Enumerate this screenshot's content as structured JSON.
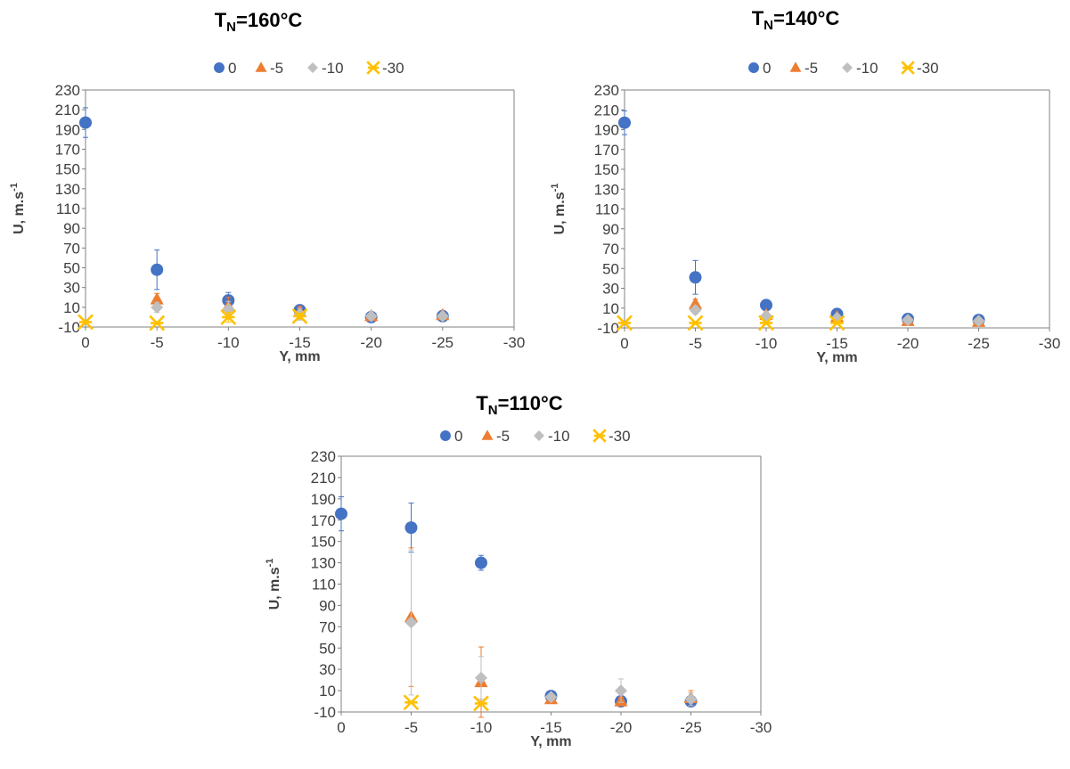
{
  "colors": {
    "s0": "#4472C4",
    "s5": "#ED7D31",
    "s10": "#BFBFBF",
    "s30": "#FFC000",
    "axis": "#808080",
    "text": "#404040"
  },
  "chart_data": [
    {
      "type": "scatter",
      "title_main": "T",
      "title_sub": "N",
      "title_rest": "=160°C",
      "xlabel": "Y, mm",
      "ylabel_main": "U, m.s",
      "ylabel_sup": "-1",
      "xlim": [
        0,
        -30
      ],
      "ylim": [
        -10,
        230
      ],
      "xticks": [
        0,
        -5,
        -10,
        -15,
        -20,
        -25,
        -30
      ],
      "yticks": [
        -10,
        10,
        30,
        50,
        70,
        90,
        110,
        130,
        150,
        170,
        190,
        210,
        230
      ],
      "legend_position": "top-center",
      "series": [
        {
          "name": "0",
          "marker": "circle",
          "x": [
            0,
            -5,
            -10,
            -15,
            -20,
            -25
          ],
          "y": [
            197,
            48,
            17,
            7,
            0,
            1
          ],
          "err": [
            15,
            20,
            8,
            4,
            2,
            2
          ]
        },
        {
          "name": "-5",
          "marker": "triangle",
          "x": [
            -5,
            -10,
            -15,
            -20,
            -25
          ],
          "y": [
            18,
            11,
            5,
            1,
            2
          ],
          "err": [
            6,
            9,
            6,
            3,
            3
          ]
        },
        {
          "name": "-10",
          "marker": "diamond",
          "x": [
            -5,
            -10,
            -15,
            -20,
            -25
          ],
          "y": [
            10,
            8,
            3,
            1,
            1
          ],
          "err": [
            5,
            8,
            6,
            2,
            2
          ]
        },
        {
          "name": "-30",
          "marker": "star",
          "x": [
            0,
            -5,
            -10,
            -15
          ],
          "y": [
            -5,
            -6,
            0,
            1
          ],
          "err": [
            1,
            1,
            5,
            3
          ]
        }
      ]
    },
    {
      "type": "scatter",
      "title_main": "T",
      "title_sub": "N",
      "title_rest": "=140°C",
      "xlabel": "Y, mm",
      "ylabel_main": "U, m.s",
      "ylabel_sup": "-1",
      "xlim": [
        0,
        -30
      ],
      "ylim": [
        -10,
        230
      ],
      "xticks": [
        0,
        -5,
        -10,
        -15,
        -20,
        -25,
        -30
      ],
      "yticks": [
        -10,
        10,
        30,
        50,
        70,
        90,
        110,
        130,
        150,
        170,
        190,
        210,
        230
      ],
      "legend_position": "top-center",
      "series": [
        {
          "name": "0",
          "marker": "circle",
          "x": [
            0,
            -5,
            -10,
            -15,
            -20,
            -25
          ],
          "y": [
            197,
            41,
            13,
            4,
            -1,
            -2
          ],
          "err": [
            12,
            17,
            3,
            2,
            1,
            1
          ]
        },
        {
          "name": "-5",
          "marker": "triangle",
          "x": [
            -5,
            -10,
            -15,
            -20,
            -25
          ],
          "y": [
            14,
            3,
            1,
            -3,
            -4
          ],
          "err": [
            5,
            3,
            2,
            1,
            1
          ]
        },
        {
          "name": "-10",
          "marker": "diamond",
          "x": [
            -5,
            -10,
            -15,
            -20,
            -25
          ],
          "y": [
            8,
            2,
            0,
            -2,
            -3
          ],
          "err": [
            4,
            2,
            2,
            1,
            1
          ]
        },
        {
          "name": "-30",
          "marker": "star",
          "x": [
            0,
            -5,
            -10,
            -15
          ],
          "y": [
            -5,
            -5,
            -5,
            -5
          ],
          "err": [
            1,
            1,
            1,
            1
          ]
        }
      ]
    },
    {
      "type": "scatter",
      "title_main": "T",
      "title_sub": "N",
      "title_rest": "=110°C",
      "xlabel": "Y, mm",
      "ylabel_main": "U, m.s",
      "ylabel_sup": "-1",
      "xlim": [
        0,
        -30
      ],
      "ylim": [
        -10,
        230
      ],
      "xticks": [
        0,
        -5,
        -10,
        -15,
        -20,
        -25,
        -30
      ],
      "yticks": [
        -10,
        10,
        30,
        50,
        70,
        90,
        110,
        130,
        150,
        170,
        190,
        210,
        230
      ],
      "legend_position": "top-center",
      "series": [
        {
          "name": "0",
          "marker": "circle",
          "x": [
            0,
            -5,
            -10,
            -15,
            -20,
            -25
          ],
          "y": [
            176,
            163,
            130,
            5,
            0,
            0
          ],
          "err": [
            16,
            23,
            7,
            2,
            2,
            2
          ]
        },
        {
          "name": "-5",
          "marker": "triangle",
          "x": [
            -5,
            -10,
            -15,
            -20,
            -25
          ],
          "y": [
            79,
            18,
            2,
            0,
            3
          ],
          "err": [
            65,
            33,
            2,
            4,
            7
          ]
        },
        {
          "name": "-10",
          "marker": "diamond",
          "x": [
            -5,
            -10,
            -15,
            -20,
            -25
          ],
          "y": [
            74,
            22,
            4,
            10,
            2
          ],
          "err": [
            68,
            20,
            2,
            11,
            6
          ]
        },
        {
          "name": "-30",
          "marker": "star",
          "x": [
            -5,
            -10
          ],
          "y": [
            -1,
            -2
          ],
          "err": [
            1,
            1
          ]
        }
      ]
    }
  ]
}
